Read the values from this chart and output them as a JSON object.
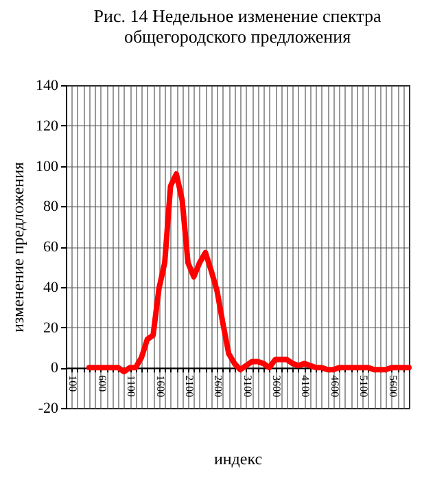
{
  "chart_data": {
    "type": "line",
    "title": [
      "Рис. 14 Недельное изменение спектра",
      "общегородского предложения"
    ],
    "xlabel": "индекс",
    "ylabel": "изменение предложения",
    "x": [
      400,
      500,
      600,
      700,
      800,
      900,
      1000,
      1100,
      1200,
      1300,
      1400,
      1500,
      1600,
      1700,
      1800,
      1900,
      2000,
      2100,
      2200,
      2300,
      2400,
      2500,
      2600,
      2700,
      2800,
      2900,
      3000,
      3100,
      3200,
      3300,
      3400,
      3500,
      3600,
      3700,
      3800,
      3900,
      4000,
      4100,
      4200,
      4300,
      4400,
      4500,
      4600,
      4700,
      4800,
      4900,
      5000,
      5100,
      5200,
      5300,
      5400,
      5500,
      5600,
      5700,
      5800,
      5900
    ],
    "series": [
      {
        "color": "#ff0000",
        "values": [
          0,
          0,
          0,
          0,
          0,
          0,
          -2,
          0,
          0,
          5,
          14,
          16,
          39,
          52,
          90,
          96,
          83,
          52,
          45,
          52,
          57,
          48,
          38,
          22,
          7,
          2,
          -1,
          1,
          3,
          3,
          2,
          0,
          4,
          4,
          4,
          2,
          1,
          2,
          1,
          0,
          0,
          -1,
          -1,
          0,
          0,
          0,
          0,
          0,
          0,
          -1,
          -1,
          -1,
          0,
          0,
          0,
          0
        ]
      }
    ],
    "xlim": [
      0,
      5900
    ],
    "xticks": [
      100,
      {
        "value": 200,
        "label": null
      },
      {
        "value": 300,
        "label": null
      },
      {
        "value": 400,
        "label": null
      },
      {
        "value": 500,
        "label": null
      },
      600,
      {
        "value": 700,
        "label": null
      },
      {
        "value": 800,
        "label": null
      },
      {
        "value": 900,
        "label": null
      },
      {
        "value": 1000,
        "label": null
      },
      1100,
      {
        "value": 1200,
        "label": null
      },
      {
        "value": 1300,
        "label": null
      },
      {
        "value": 1400,
        "label": null
      },
      {
        "value": 1500,
        "label": null
      },
      1600,
      {
        "value": 1700,
        "label": null
      },
      {
        "value": 1800,
        "label": null
      },
      {
        "value": 1900,
        "label": null
      },
      {
        "value": 2000,
        "label": null
      },
      2100,
      {
        "value": 2200,
        "label": null
      },
      {
        "value": 2300,
        "label": null
      },
      {
        "value": 2400,
        "label": null
      },
      {
        "value": 2500,
        "label": null
      },
      2600,
      {
        "value": 2700,
        "label": null
      },
      {
        "value": 2800,
        "label": null
      },
      {
        "value": 2900,
        "label": null
      },
      {
        "value": 3000,
        "label": null
      },
      3100,
      {
        "value": 3200,
        "label": null
      },
      {
        "value": 3300,
        "label": null
      },
      {
        "value": 3400,
        "label": null
      },
      {
        "value": 3500,
        "label": null
      },
      3600,
      {
        "value": 3700,
        "label": null
      },
      {
        "value": 3800,
        "label": null
      },
      {
        "value": 3900,
        "label": null
      },
      {
        "value": 4000,
        "label": null
      },
      4100,
      {
        "value": 4200,
        "label": null
      },
      {
        "value": 4300,
        "label": null
      },
      {
        "value": 4400,
        "label": null
      },
      {
        "value": 4500,
        "label": null
      },
      4600,
      {
        "value": 4700,
        "label": null
      },
      {
        "value": 4800,
        "label": null
      },
      {
        "value": 4900,
        "label": null
      },
      {
        "value": 5000,
        "label": null
      },
      5100,
      {
        "value": 5200,
        "label": null
      },
      {
        "value": 5300,
        "label": null
      },
      {
        "value": 5400,
        "label": null
      },
      {
        "value": 5500,
        "label": null
      },
      5600,
      {
        "value": 5700,
        "label": null
      },
      {
        "value": 5800,
        "label": null
      },
      {
        "value": 5900,
        "label": null
      }
    ],
    "ylim": [
      -20,
      140
    ],
    "yticks": [
      -20,
      0,
      20,
      40,
      60,
      80,
      100,
      120,
      140
    ],
    "grid": true,
    "line_style": "solid"
  }
}
